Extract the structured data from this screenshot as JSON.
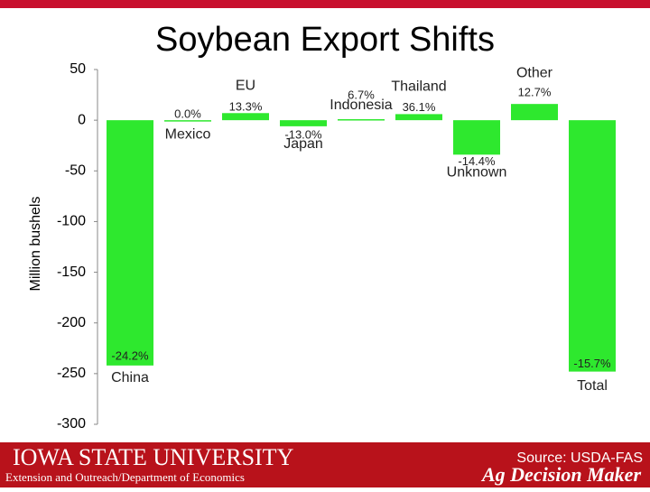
{
  "chart_data": {
    "type": "bar",
    "title": "Soybean Export Shifts",
    "y_axis_label": "Million bushels",
    "categories": [
      "China",
      "Mexico",
      "EU",
      "Japan",
      "Indonesia",
      "Thailand",
      "Unknown",
      "Other",
      "Total"
    ],
    "values": [
      -242,
      0,
      7,
      -6,
      1,
      6,
      -34,
      16,
      -248
    ],
    "annotations": [
      "-24.2%",
      "0.0%",
      "13.3%",
      "-13.0%",
      "6.7%",
      "36.1%",
      "-14.4%",
      "12.7%",
      "-15.7%"
    ],
    "color": "#2ee82e",
    "ylim": [
      -300,
      50
    ],
    "yticks": [
      -300,
      -250,
      -200,
      -150,
      -100,
      -50,
      0,
      50
    ],
    "grid": false,
    "source": "Source: USDA-FAS"
  },
  "footer": {
    "university": "Iowa State University",
    "department": "Extension and Outreach/Department of Economics",
    "brand": "Ag Decision Maker"
  }
}
